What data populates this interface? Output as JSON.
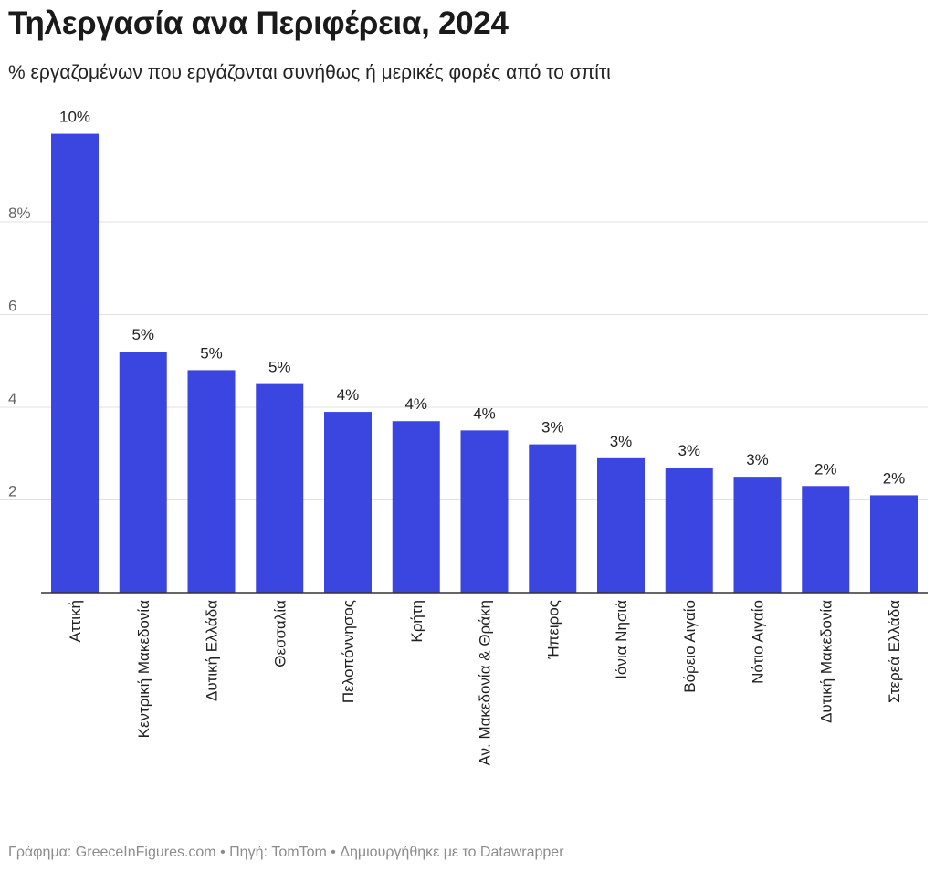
{
  "header": {
    "title": "Τηλεργασία ανα Περιφέρεια, 2024",
    "subtitle": "% εργαζομένων που εργάζονται συνήθως ή μερικές φορές από το σπίτι"
  },
  "footer": {
    "credits": "Γράφημα: GreeceInFigures.com • Πηγή: TomTom • Δημιουργήθηκε με το Datawrapper"
  },
  "chart_data": {
    "type": "bar",
    "title": "Τηλεργασία ανα Περιφέρεια, 2024",
    "subtitle": "% εργαζομένων που εργάζονται συνήθως ή μερικές φορές από το σπίτι",
    "categories": [
      "Αττική",
      "Κεντρική Μακεδονία",
      "Δυτική Ελλάδα",
      "Θεσσαλία",
      "Πελοπόννησος",
      "Κρήτη",
      "Αν. Μακεδονία & Θράκη",
      "Ήπειρος",
      "Ιόνια Νησιά",
      "Βόρειο Αιγαίο",
      "Νότιο Αιγαίο",
      "Δυτική Μακεδονία",
      "Στερεά Ελλάδα"
    ],
    "values": [
      9.9,
      5.2,
      4.8,
      4.5,
      3.9,
      3.7,
      3.5,
      3.2,
      2.9,
      2.7,
      2.5,
      2.3,
      2.1
    ],
    "data_labels": [
      "10%",
      "5%",
      "5%",
      "5%",
      "4%",
      "4%",
      "4%",
      "3%",
      "3%",
      "3%",
      "3%",
      "2%",
      "2%"
    ],
    "y_ticks": [
      2,
      4,
      6,
      8
    ],
    "y_tick_labels": [
      "2",
      "4",
      "6",
      "8%"
    ],
    "ylim": [
      0,
      10
    ],
    "bar_color": "#3b46e0",
    "grid": true,
    "legend": "none"
  }
}
